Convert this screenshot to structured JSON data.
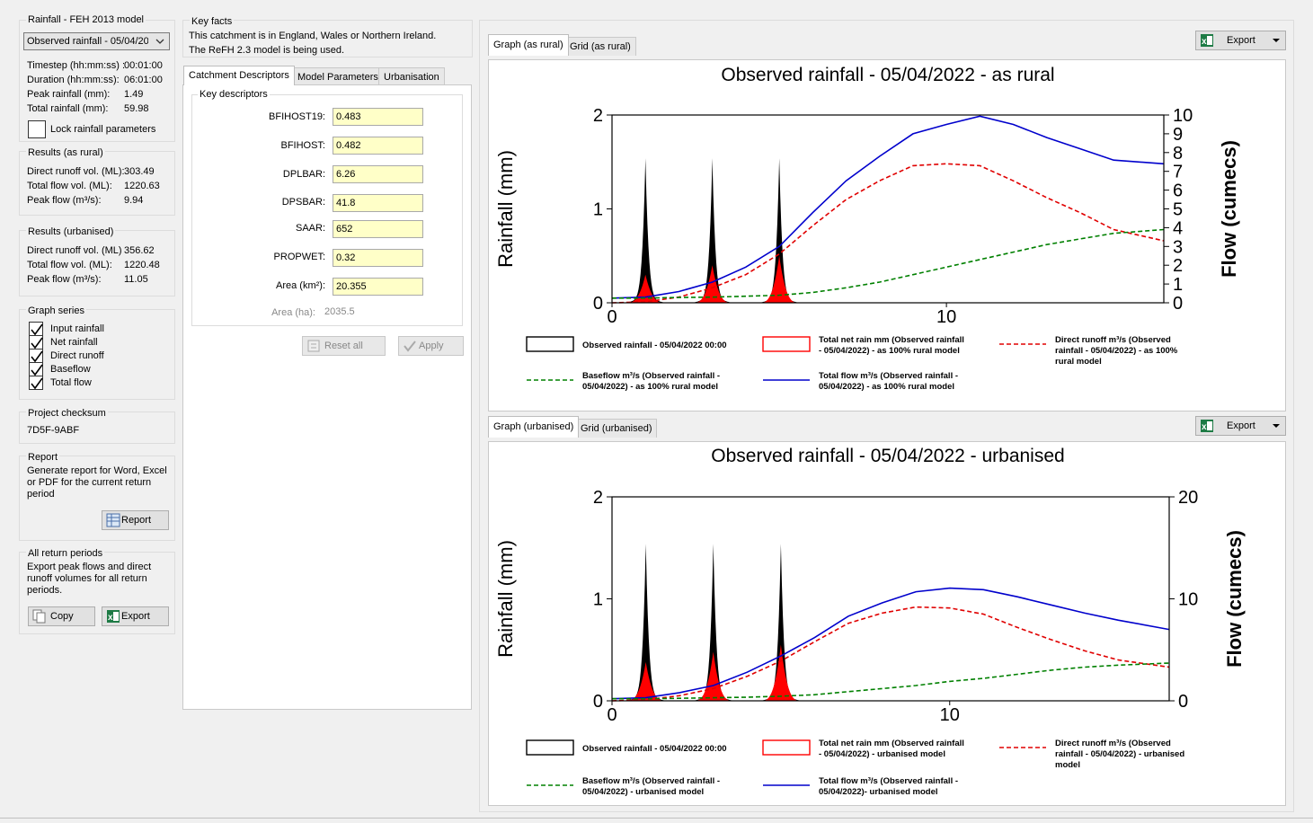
{
  "rainfall_group": {
    "title": "Rainfall - FEH 2013 model",
    "selected_event": "Observed rainfall - 05/04/2022",
    "rows": [
      {
        "label": "Timestep (hh:mm:ss) :",
        "value": "00:01:00"
      },
      {
        "label": "Duration (hh:mm:ss):",
        "value": "06:01:00"
      },
      {
        "label": "Peak rainfall (mm):",
        "value": "1.49"
      },
      {
        "label": "Total rainfall (mm):",
        "value": "59.98"
      }
    ],
    "lock_label": "Lock rainfall parameters"
  },
  "results_rural": {
    "title": "Results (as rural)",
    "rows": [
      {
        "label": "Direct runoff vol. (ML):",
        "value": "303.49"
      },
      {
        "label": "Total flow vol. (ML):",
        "value": "1220.63"
      },
      {
        "label": "Peak flow (m³/s):",
        "value": "9.94"
      }
    ]
  },
  "results_urban": {
    "title": "Results (urbanised)",
    "rows": [
      {
        "label": "Direct runoff vol. (ML)",
        "value": "356.62"
      },
      {
        "label": "Total flow vol. (ML):",
        "value": "1220.48"
      },
      {
        "label": "Peak flow (m³/s):",
        "value": "11.05"
      }
    ]
  },
  "graph_series": {
    "title": "Graph series",
    "items": [
      "Input rainfall",
      "Net rainfall",
      "Direct runoff",
      "Baseflow",
      "Total flow"
    ]
  },
  "checksum": {
    "title": "Project checksum",
    "value": "7D5F-9ABF"
  },
  "report": {
    "title": "Report",
    "text": "Generate report for Word, Excel or PDF for the current return period",
    "button": "Report"
  },
  "all_return": {
    "title": "All return periods",
    "text": "Export peak flows and direct runoff volumes for all return periods.",
    "copy": "Copy",
    "export": "Export"
  },
  "key_facts": {
    "title": "Key facts",
    "line1": "This catchment is in England, Wales or Northern Ireland.",
    "line2": "The ReFH 2.3 model is being used."
  },
  "desc_tabs": [
    "Catchment Descriptors",
    "Model Parameters",
    "Urbanisation"
  ],
  "key_descriptors": {
    "title": "Key descriptors",
    "fields": [
      {
        "label": "BFIHOST19:",
        "value": "0.483"
      },
      {
        "label": "BFIHOST:",
        "value": "0.482"
      },
      {
        "label": "DPLBAR:",
        "value": "6.26"
      },
      {
        "label": "DPSBAR:",
        "value": "41.8"
      },
      {
        "label": "SAAR:",
        "value": "652"
      },
      {
        "label": "PROPWET:",
        "value": "0.32"
      },
      {
        "label": "Area (km²):",
        "value": "20.355"
      }
    ],
    "area_ha_label": "Area (ha):",
    "area_ha_value": "2035.5",
    "reset": "Reset all",
    "apply": "Apply"
  },
  "rural_tabs": [
    "Graph (as rural)",
    "Grid (as rural)"
  ],
  "urban_tabs": [
    "Graph (urbanised)",
    "Grid (urbanised)"
  ],
  "export_label": "Export",
  "colors": {
    "rain": "#000000",
    "net_rain": "#ff0000",
    "direct": "#e00000",
    "baseflow": "#008000",
    "total": "#0000cc"
  },
  "chart_data": [
    {
      "type": "line",
      "title": "Observed rainfall - 05/04/2022 - as rural",
      "ylabel": "Rainfall (mm)",
      "y2label": "Flow (cumecs)",
      "xlim": [
        0,
        16.5
      ],
      "ylim": [
        0,
        2
      ],
      "y2lim": [
        0,
        10
      ],
      "xticks": [
        "0",
        "10"
      ],
      "yticks": [
        "0",
        "1",
        "2"
      ],
      "y2ticks": [
        "0",
        "1",
        "2",
        "3",
        "4",
        "5",
        "6",
        "7",
        "8",
        "9",
        "10"
      ],
      "rain_bursts": [
        {
          "center": 1.0,
          "peak": 1.49,
          "net_peak": 0.3
        },
        {
          "center": 3.0,
          "peak": 1.49,
          "net_peak": 0.4
        },
        {
          "center": 5.0,
          "peak": 1.49,
          "net_peak": 0.5
        }
      ],
      "series": [
        {
          "name": "Total flow m³/s (Observed rainfall - 05/04/2022) - as 100% rural model",
          "x": [
            0,
            1,
            2,
            3,
            4,
            5,
            6,
            7,
            8,
            9,
            10,
            11,
            12,
            13,
            14,
            15,
            16.5
          ],
          "values": [
            0.25,
            0.3,
            0.6,
            1.1,
            1.9,
            3.0,
            4.8,
            6.5,
            7.8,
            9.0,
            9.5,
            9.94,
            9.5,
            8.8,
            8.2,
            7.6,
            7.4
          ]
        },
        {
          "name": "Direct runoff m³/s (Observed rainfall - 05/04/2022) - as 100% rural model",
          "x": [
            0,
            1,
            2,
            3,
            4,
            5,
            6,
            7,
            8,
            9,
            10,
            11,
            12,
            13,
            14,
            15,
            16.5
          ],
          "values": [
            0.0,
            0.05,
            0.3,
            0.8,
            1.5,
            2.6,
            4.1,
            5.5,
            6.5,
            7.3,
            7.4,
            7.3,
            6.5,
            5.6,
            4.8,
            3.9,
            3.3
          ]
        },
        {
          "name": "Baseflow m³/s (Observed rainfall - 05/04/2022) - as 100% rural model",
          "x": [
            0,
            1,
            2,
            3,
            4,
            5,
            6,
            7,
            8,
            9,
            10,
            11,
            12,
            13,
            14,
            15,
            16.5
          ],
          "values": [
            0.25,
            0.25,
            0.28,
            0.3,
            0.35,
            0.4,
            0.55,
            0.8,
            1.1,
            1.5,
            1.9,
            2.3,
            2.7,
            3.1,
            3.4,
            3.7,
            3.9
          ]
        }
      ],
      "legend": [
        "Observed rainfall - 05/04/2022 00:00",
        "Total net rain mm (Observed rainfall - 05/04/2022) - as 100% rural model",
        "Direct runoff m³/s (Observed rainfall - 05/04/2022) - as 100% rural model",
        "Baseflow m³/s (Observed rainfall - 05/04/2022) - as 100% rural model",
        "Total flow m³/s (Observed rainfall - 05/04/2022) - as 100% rural model"
      ]
    },
    {
      "type": "line",
      "title": "Observed rainfall - 05/04/2022 - urbanised",
      "ylabel": "Rainfall (mm)",
      "y2label": "Flow (cumecs)",
      "xlim": [
        0,
        16.5
      ],
      "ylim": [
        0,
        2
      ],
      "y2lim": [
        0,
        20
      ],
      "xticks": [
        "0",
        "10"
      ],
      "yticks": [
        "0",
        "1",
        "2"
      ],
      "y2ticks": [
        "0",
        "10",
        "20"
      ],
      "rain_bursts": [
        {
          "center": 1.0,
          "peak": 1.49,
          "net_peak": 0.38
        },
        {
          "center": 3.0,
          "peak": 1.49,
          "net_peak": 0.48
        },
        {
          "center": 5.0,
          "peak": 1.49,
          "net_peak": 0.55
        }
      ],
      "series": [
        {
          "name": "Total flow m³/s (Observed rainfall - 05/04/2022)- urbanised model",
          "x": [
            0,
            1,
            2,
            3,
            4,
            5,
            6,
            7,
            8,
            9,
            10,
            11,
            12,
            13,
            14,
            15,
            16.5
          ],
          "values": [
            0.2,
            0.3,
            0.8,
            1.5,
            2.8,
            4.4,
            6.2,
            8.3,
            9.6,
            10.7,
            11.05,
            10.9,
            10.2,
            9.4,
            8.6,
            7.9,
            7.0
          ]
        },
        {
          "name": "Direct runoff m³/s (Observed rainfall - 05/04/2022) - urbanised model",
          "x": [
            0,
            1,
            2,
            3,
            4,
            5,
            6,
            7,
            8,
            9,
            10,
            11,
            12,
            13,
            14,
            15,
            16.5
          ],
          "values": [
            0.0,
            0.1,
            0.5,
            1.2,
            2.4,
            3.9,
            5.8,
            7.6,
            8.6,
            9.2,
            9.1,
            8.5,
            7.2,
            6.0,
            4.9,
            4.0,
            3.3
          ]
        },
        {
          "name": "Baseflow m³/s (Observed rainfall - 05/04/2022) - urbanised model",
          "x": [
            0,
            1,
            2,
            3,
            4,
            5,
            6,
            7,
            8,
            9,
            10,
            11,
            12,
            13,
            14,
            15,
            16.5
          ],
          "values": [
            0.2,
            0.2,
            0.25,
            0.3,
            0.35,
            0.45,
            0.6,
            0.9,
            1.2,
            1.5,
            1.9,
            2.2,
            2.6,
            3.0,
            3.3,
            3.5,
            3.7
          ]
        }
      ],
      "legend": [
        "Observed rainfall - 05/04/2022 00:00",
        "Total net rain mm (Observed rainfall - 05/04/2022) - urbanised model",
        "Direct runoff m³/s (Observed rainfall - 05/04/2022) - urbanised model",
        "Baseflow m³/s (Observed rainfall - 05/04/2022) - urbanised model",
        "Total flow m³/s (Observed rainfall - 05/04/2022)- urbanised model"
      ]
    }
  ]
}
